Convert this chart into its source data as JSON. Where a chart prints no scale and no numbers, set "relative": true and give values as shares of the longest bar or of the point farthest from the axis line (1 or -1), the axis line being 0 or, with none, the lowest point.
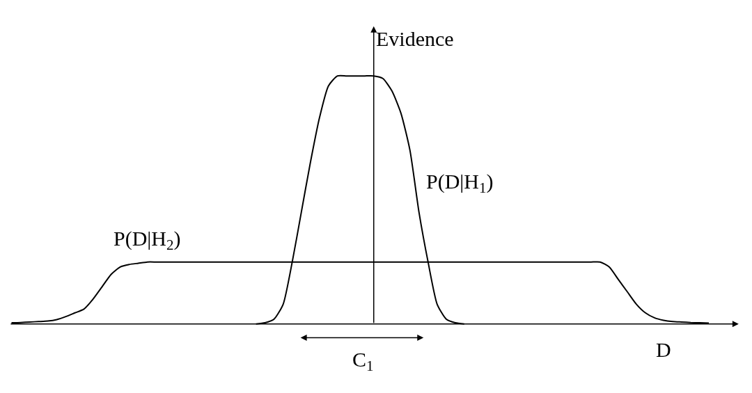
{
  "chart_data": {
    "type": "line",
    "relative": true,
    "xlabel": "D",
    "ylabel": "Evidence",
    "categories": [
      null,
      null,
      null,
      null,
      null,
      null,
      null,
      null,
      null,
      null,
      null,
      null,
      null,
      null,
      null,
      null,
      null,
      null,
      null,
      null,
      null,
      null,
      null,
      null,
      null,
      null,
      null,
      null,
      null,
      null,
      null,
      null,
      null,
      null,
      null,
      null,
      null,
      null,
      null,
      null,
      null,
      null,
      null,
      null,
      null,
      null,
      null,
      null,
      null,
      null,
      null,
      null,
      null,
      null,
      null,
      null,
      null,
      null,
      null,
      null,
      null,
      null,
      null,
      null,
      null,
      null,
      null,
      null,
      null,
      null,
      null,
      null,
      null,
      null,
      null,
      null,
      null,
      null,
      null,
      null,
      null
    ],
    "series": [
      {
        "name": "P(D|H$_{1}$)",
        "color": "#000000",
        "values": [
          null,
          null,
          null,
          null,
          null,
          null,
          null,
          null,
          null,
          null,
          null,
          null,
          null,
          null,
          null,
          null,
          null,
          null,
          null,
          null,
          null,
          null,
          null,
          null,
          null,
          null,
          null,
          0,
          0.005,
          0.02,
          0.08,
          0.25,
          0.45,
          0.65,
          0.83,
          0.96,
          1,
          1,
          1,
          1,
          1,
          0.99,
          0.94,
          0.85,
          0.7,
          0.45,
          0.25,
          0.08,
          0.02,
          0.005,
          0,
          null,
          null,
          null,
          null,
          null,
          null,
          null,
          null,
          null,
          null,
          null,
          null,
          null,
          null,
          null,
          null,
          null,
          null,
          null,
          null,
          null,
          null,
          null,
          null,
          null,
          null,
          null,
          null,
          null,
          null
        ]
      },
      {
        "name": "P(D|H$_{2}$)",
        "color": "#000000",
        "values": [
          0.005,
          0.006,
          0.008,
          0.01,
          0.012,
          0.018,
          0.03,
          0.045,
          0.06,
          0.1,
          0.15,
          0.2,
          0.23,
          0.24,
          0.245,
          0.25,
          0.25,
          0.25,
          0.25,
          0.25,
          0.25,
          0.25,
          0.25,
          0.25,
          0.25,
          0.25,
          0.25,
          0.25,
          0.25,
          0.25,
          0.25,
          0.25,
          0.25,
          0.25,
          0.25,
          0.25,
          0.25,
          0.25,
          0.25,
          0.25,
          0.25,
          0.25,
          0.25,
          0.25,
          0.25,
          0.25,
          0.25,
          0.25,
          0.25,
          0.25,
          0.25,
          0.25,
          0.25,
          0.25,
          0.25,
          0.25,
          0.25,
          0.25,
          0.25,
          0.25,
          0.25,
          0.25,
          0.25,
          0.25,
          0.25,
          0.25,
          0.23,
          0.18,
          0.13,
          0.08,
          0.045,
          0.025,
          0.015,
          0.01,
          0.008,
          0.006,
          0.005,
          0.004,
          null,
          null,
          null
        ]
      }
    ],
    "annotations": [
      "C$_{1}$"
    ],
    "legend": false,
    "marker": "none",
    "line_style": "solid"
  }
}
